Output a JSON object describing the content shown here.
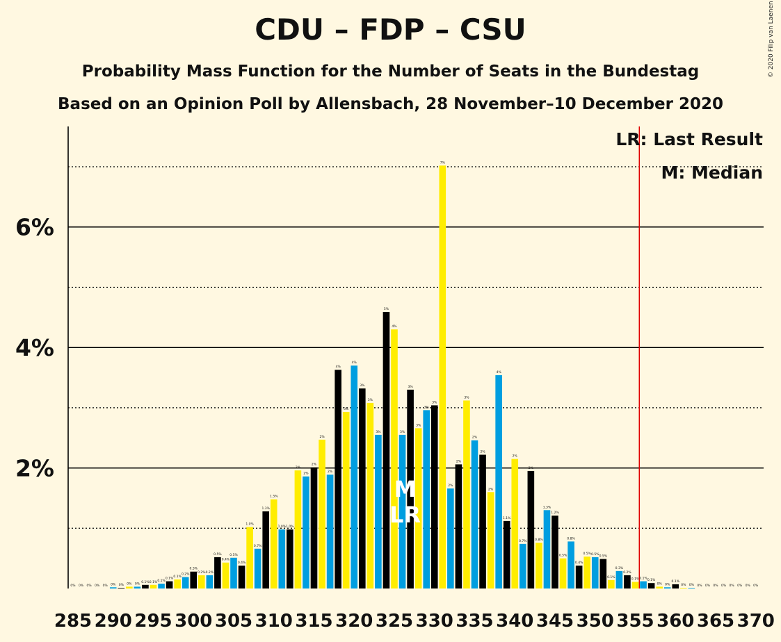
{
  "chart_data": {
    "type": "bar",
    "title": "CDU – FDP – CSU",
    "subtitle": "Probability Mass Function for the Number of Seats in the Bundestag",
    "subtitle2": "Based on an Opinion Poll by Allensbach, 28 November–10 December 2020",
    "copyright": "© 2020 Filip van Laenen",
    "legend": {
      "lr": "LR: Last Result",
      "median": "M: Median",
      "placement": "top-right"
    },
    "x_start": 285,
    "x_end": 370,
    "x_tick_step": 5,
    "x_ticks": [
      "285",
      "290",
      "295",
      "300",
      "305",
      "310",
      "315",
      "320",
      "325",
      "330",
      "335",
      "340",
      "345",
      "350",
      "355",
      "360",
      "365",
      "370"
    ],
    "ylim": [
      0,
      7.6
    ],
    "y_ticks": [
      {
        "value": 2,
        "label": "2%"
      },
      {
        "value": 4,
        "label": "4%"
      },
      {
        "value": 6,
        "label": "6%"
      }
    ],
    "minor_grid": [
      1,
      3,
      5,
      7
    ],
    "last_result_seat": 355,
    "median_seat": 326,
    "median_label": "M",
    "last_result_label": "LR",
    "last_result_line_seat": 355.5,
    "colors": [
      "#000000",
      "#FFED00",
      "#009EE0"
    ],
    "marker_colors": {
      "lr_line": "#E00000",
      "median_text": "#FFFFFF"
    },
    "values": [
      0.0,
      0.0,
      0.0,
      0.0,
      0.0,
      0.02,
      0.01,
      0.03,
      0.03,
      0.06,
      0.06,
      0.08,
      0.12,
      0.15,
      0.19,
      0.28,
      0.22,
      0.22,
      0.52,
      0.43,
      0.51,
      0.38,
      1.02,
      0.66,
      1.28,
      1.48,
      0.98,
      0.98,
      1.96,
      1.86,
      2.01,
      2.47,
      1.89,
      3.63,
      2.93,
      3.7,
      3.32,
      3.08,
      2.55,
      4.59,
      4.3,
      2.55,
      3.3,
      2.66,
      2.96,
      3.04,
      7.02,
      1.66,
      2.06,
      3.12,
      2.46,
      2.22,
      1.6,
      3.54,
      1.12,
      2.15,
      0.74,
      1.95,
      0.76,
      1.3,
      1.21,
      0.5,
      0.78,
      0.38,
      0.53,
      0.52,
      0.49,
      0.14,
      0.29,
      0.22,
      0.11,
      0.12,
      0.09,
      0.03,
      0.02,
      0.07,
      0.01,
      0.01,
      0.0,
      0.0,
      0.0,
      0.0,
      0.0,
      0.0,
      0.0,
      0.0
    ],
    "value_labels": [
      "0%",
      "0%",
      "0%",
      "0%",
      "0%",
      "0%",
      "0%",
      "0%",
      "0%",
      "0.1%",
      "0.1%",
      "0.1%",
      "0.1%",
      "0.1%",
      "0.2%",
      "0.3%",
      "0.2%",
      "0.2%",
      "0.5%",
      "0.4%",
      "0.5%",
      "0.4%",
      "1.0%",
      "0.7%",
      "1.3%",
      "1.5%",
      "1.0%",
      "1.0%",
      "2%",
      "2%",
      "2%",
      "2%",
      "2%",
      "4%",
      "3%",
      "4%",
      "3%",
      "3%",
      "3%",
      "5%",
      "4%",
      "3%",
      "3%",
      "3%",
      "3%",
      "3%",
      "7%",
      "2%",
      "2%",
      "3%",
      "2%",
      "2%",
      "2%",
      "4%",
      "1.1%",
      "2%",
      "0.7%",
      "2%",
      "0.8%",
      "1.3%",
      "1.2%",
      "0.5%",
      "0.8%",
      "0.4%",
      "0.5%",
      "0.5%",
      "0.5%",
      "0.1%",
      "0.3%",
      "0.2%",
      "0.1%",
      "0.1%",
      "0.1%",
      "0%",
      "0%",
      "0.1%",
      "0%",
      "0%",
      "0%",
      "0%",
      "0%",
      "0%",
      "0%",
      "0%",
      "0%",
      "0%"
    ]
  }
}
